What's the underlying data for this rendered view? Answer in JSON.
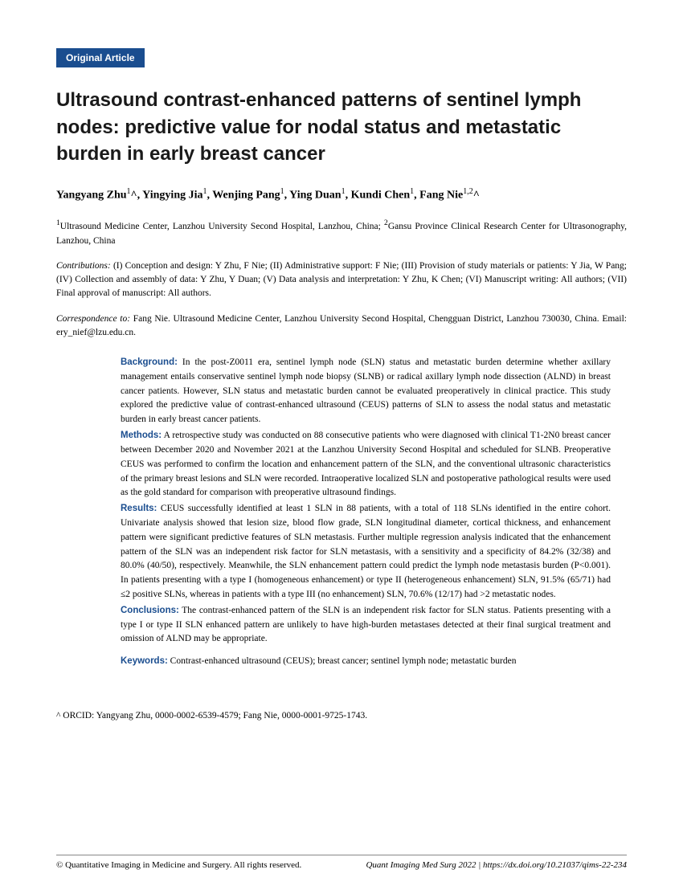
{
  "badge": "Original Article",
  "title": "Ultrasound contrast-enhanced patterns of sentinel lymph nodes: predictive value for nodal status and metastatic burden in early breast cancer",
  "authors_html": "Yangyang Zhu<sup>1</sup>^, Yingying Jia<sup>1</sup>, Wenjing Pang<sup>1</sup>, Ying Duan<sup>1</sup>, Kundi Chen<sup>1</sup>, Fang Nie<sup>1,2</sup>^",
  "affiliations_html": "<sup>1</sup>Ultrasound Medicine Center, Lanzhou University Second Hospital, Lanzhou, China; <sup>2</sup>Gansu Province Clinical Research Center for Ultrasonography, Lanzhou, China",
  "contributions_label": "Contributions:",
  "contributions_text": " (I) Conception and design: Y Zhu, F Nie; (II) Administrative support: F Nie; (III) Provision of study materials or patients: Y Jia, W Pang; (IV) Collection and assembly of data: Y Zhu, Y Duan; (V) Data analysis and interpretation: Y Zhu, K Chen; (VI) Manuscript writing: All authors; (VII) Final approval of manuscript: All authors.",
  "correspondence_label": "Correspondence to:",
  "correspondence_text": " Fang Nie. Ultrasound Medicine Center, Lanzhou University Second Hospital, Chengguan District, Lanzhou 730030, China. Email: ery_nief@lzu.edu.cn.",
  "abstract": {
    "background": {
      "heading": "Background:",
      "text": " In the post-Z0011 era, sentinel lymph node (SLN) status and metastatic burden determine whether axillary management entails conservative sentinel lymph node biopsy (SLNB) or radical axillary lymph node dissection (ALND) in breast cancer patients. However, SLN status and metastatic burden cannot be evaluated preoperatively in clinical practice. This study explored the predictive value of contrast-enhanced ultrasound (CEUS) patterns of SLN to assess the nodal status and metastatic burden in early breast cancer patients."
    },
    "methods": {
      "heading": "Methods:",
      "text": " A retrospective study was conducted on 88 consecutive patients who were diagnosed with clinical T1-2N0 breast cancer between December 2020 and November 2021 at the Lanzhou University Second Hospital and scheduled for SLNB. Preoperative CEUS was performed to confirm the location and enhancement pattern of the SLN, and the conventional ultrasonic characteristics of the primary breast lesions and SLN were recorded. Intraoperative localized SLN and postoperative pathological results were used as the gold standard for comparison with preoperative ultrasound findings."
    },
    "results": {
      "heading": "Results:",
      "text": " CEUS successfully identified at least 1 SLN in 88 patients, with a total of 118 SLNs identified in the entire cohort. Univariate analysis showed that lesion size, blood flow grade, SLN longitudinal diameter, cortical thickness, and enhancement pattern were significant predictive features of SLN metastasis. Further multiple regression analysis indicated that the enhancement pattern of the SLN was an independent risk factor for SLN metastasis, with a sensitivity and a specificity of 84.2% (32/38) and 80.0% (40/50), respectively. Meanwhile, the SLN enhancement pattern could predict the lymph node metastasis burden (P<0.001). In patients presenting with a type I (homogeneous enhancement) or type II (heterogeneous enhancement) SLN, 91.5% (65/71) had ≤2 positive SLNs, whereas in patients with a type III (no enhancement) SLN, 70.6% (12/17) had >2 metastatic nodes."
    },
    "conclusions": {
      "heading": "Conclusions:",
      "text": " The contrast-enhanced pattern of the SLN is an independent risk factor for SLN status. Patients presenting with a type I or type II SLN enhanced pattern are unlikely to have high-burden metastases detected at their final surgical treatment and omission of ALND may be appropriate."
    },
    "keywords": {
      "heading": "Keywords:",
      "text": " Contrast-enhanced ultrasound (CEUS); breast cancer; sentinel lymph node; metastatic burden"
    }
  },
  "orcid": "^ ORCID: Yangyang Zhu, 0000-0002-6539-4579; Fang Nie, 0000-0001-9725-1743.",
  "footer": {
    "left": "© Quantitative Imaging in Medicine and Surgery. All rights reserved.",
    "right": "Quant Imaging Med Surg 2022 | https://dx.doi.org/10.21037/qims-22-234"
  },
  "colors": {
    "badge_bg": "#1a4d8f",
    "heading_color": "#1a4d8f",
    "text": "#000000",
    "bg": "#ffffff"
  }
}
